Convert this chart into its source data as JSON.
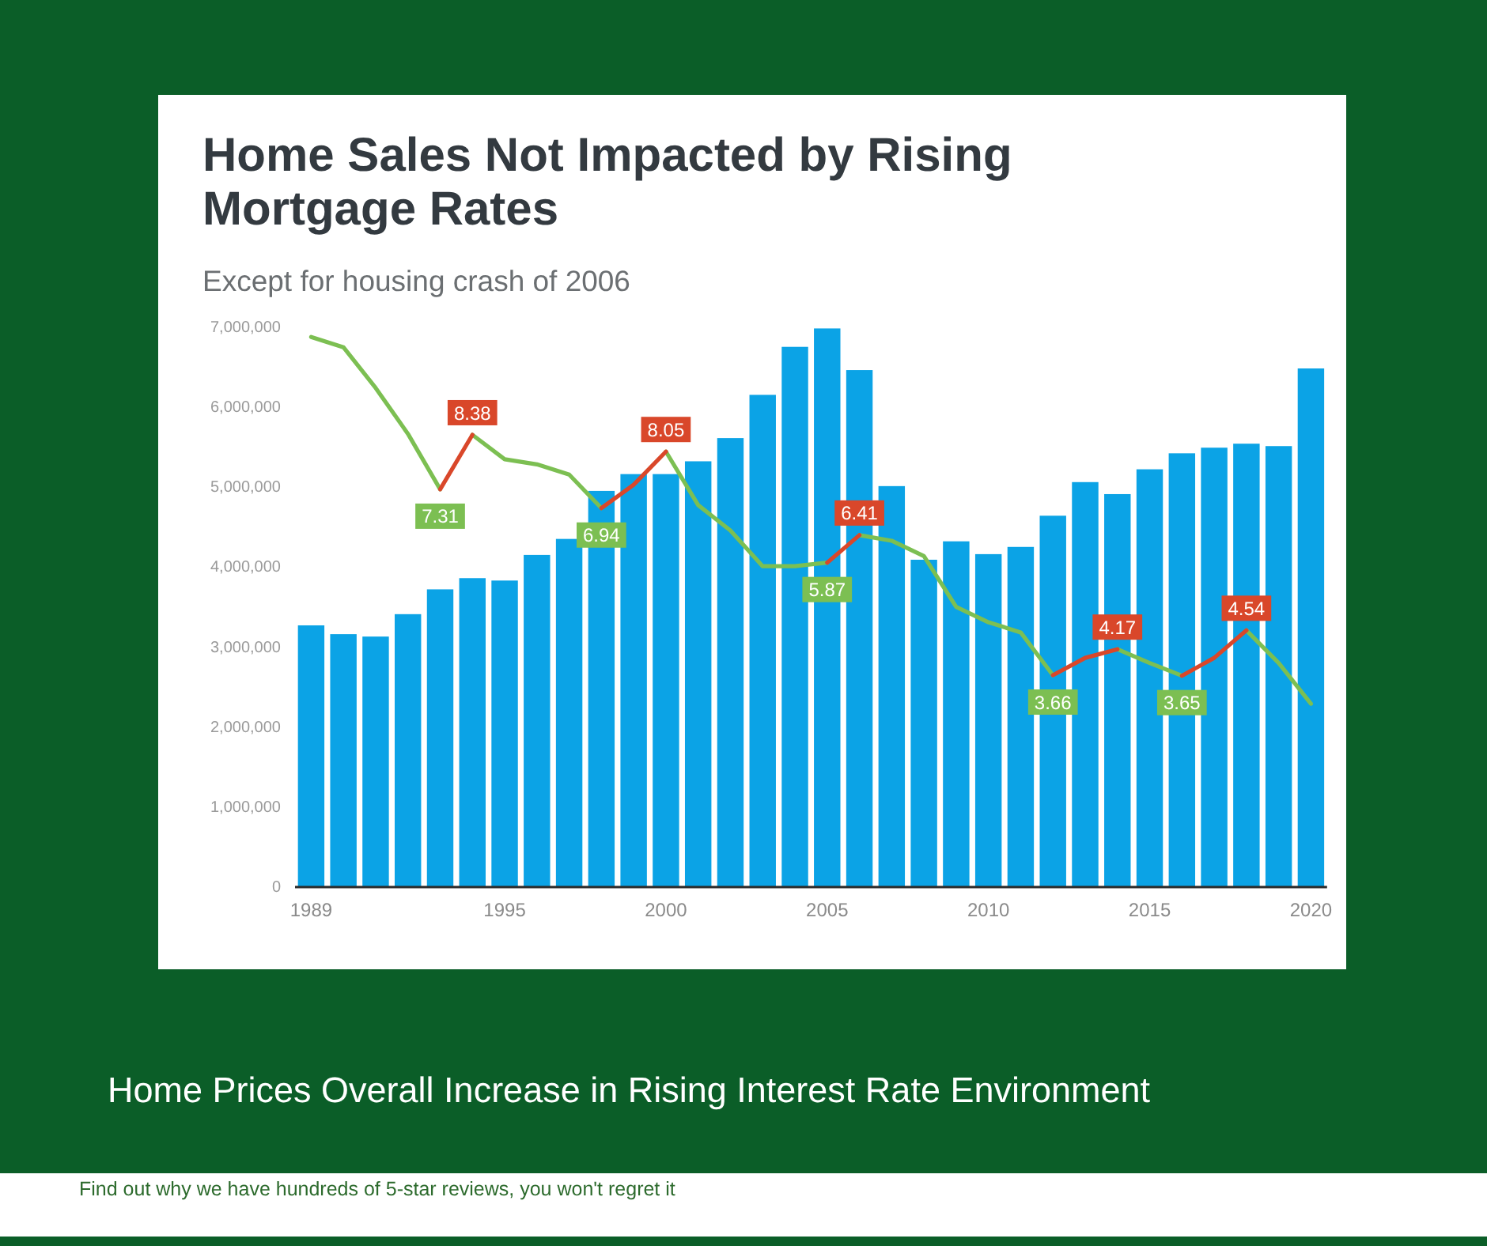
{
  "chart_data": {
    "type": "bar",
    "title": "Home Sales Not Impacted by Rising Mortgage Rates",
    "subtitle": "Except for housing crash of 2006",
    "annotations": [
      "Home Prices Overall Increase in Rising Interest Rate Environment",
      "Find out why we have hundreds of 5-star reviews, you won't regret it"
    ],
    "x": [
      1989,
      1990,
      1991,
      1992,
      1993,
      1994,
      1995,
      1996,
      1997,
      1998,
      1999,
      2000,
      2001,
      2002,
      2003,
      2004,
      2005,
      2006,
      2007,
      2008,
      2009,
      2010,
      2011,
      2012,
      2013,
      2014,
      2015,
      2016,
      2017,
      2018,
      2019,
      2020
    ],
    "xlim": [
      1988.5,
      2020.5
    ],
    "xticks": [
      1989,
      1995,
      2000,
      2005,
      2010,
      2015,
      2020
    ],
    "ylim": [
      0,
      7000000
    ],
    "yticks": [
      0,
      {
        "value": 1000000,
        "label": "1,000,000"
      },
      {
        "value": 2000000,
        "label": "2,000,000"
      },
      {
        "value": 3000000,
        "label": "3,000,000"
      },
      {
        "value": 4000000,
        "label": "4,000,000"
      },
      {
        "value": 5000000,
        "label": "5,000,000"
      },
      {
        "value": 6000000,
        "label": "6,000,000"
      },
      {
        "value": 7000000,
        "label": "7,000,000"
      }
    ],
    "y2lim": [
      -0.5,
      10.5
    ],
    "series": [
      {
        "color": "#0ba3e6",
        "values": [
          3270000,
          3160000,
          3130000,
          3410000,
          3720000,
          3860000,
          3830000,
          4150000,
          4350000,
          4950000,
          5160000,
          5160000,
          5320000,
          5610000,
          6150000,
          6750000,
          6980000,
          6460000,
          5010000,
          4090000,
          4320000,
          4160000,
          4250000,
          4640000,
          5060000,
          4910000,
          5220000,
          5420000,
          5490000,
          5540000,
          5510000,
          6480000
        ]
      },
      {
        "type": "line",
        "axis": "y2",
        "color": "#7cbf52",
        "x": [
          1989,
          1990,
          1991,
          1992,
          1993,
          null,
          1994,
          1995,
          1996,
          1997,
          1998,
          null,
          2000,
          2001,
          2002,
          2003,
          2004,
          2005,
          null,
          2006,
          2007,
          2008,
          2009,
          2010,
          2011,
          2012,
          null,
          2014,
          2015,
          2016,
          null,
          2018,
          2019,
          2020
        ],
        "values": [
          10.3,
          10.1,
          9.3,
          8.4,
          7.31,
          null,
          8.38,
          7.9,
          7.8,
          7.6,
          6.94,
          null,
          8.05,
          7.0,
          6.5,
          5.8,
          5.8,
          5.87,
          null,
          6.41,
          6.3,
          6.0,
          5.0,
          4.7,
          4.5,
          3.66,
          null,
          4.17,
          3.9,
          3.65,
          null,
          4.54,
          3.9,
          3.1
        ],
        "value_labels": [
          null,
          null,
          null,
          null,
          "7.31",
          null,
          null,
          null,
          null,
          null,
          "6.94",
          null,
          null,
          null,
          null,
          null,
          null,
          "5.87",
          null,
          null,
          null,
          null,
          null,
          null,
          null,
          "3.66",
          null,
          null,
          null,
          "3.65",
          null,
          null,
          null,
          null
        ]
      },
      {
        "type": "line",
        "axis": "y2",
        "color": "#d9472a",
        "x": [
          1993,
          1994,
          null,
          1998,
          1999,
          2000,
          null,
          2005,
          2006,
          null,
          2012,
          2013,
          2014,
          null,
          2016,
          2017,
          2018
        ],
        "values": [
          7.31,
          8.38,
          null,
          6.94,
          7.4,
          8.05,
          null,
          5.87,
          6.41,
          null,
          3.66,
          4.0,
          4.17,
          null,
          3.65,
          4.0,
          4.54
        ],
        "value_labels": [
          null,
          "8.38",
          null,
          null,
          null,
          "8.05",
          null,
          null,
          "6.41",
          null,
          null,
          null,
          "4.17",
          null,
          null,
          null,
          "4.54"
        ]
      }
    ]
  }
}
